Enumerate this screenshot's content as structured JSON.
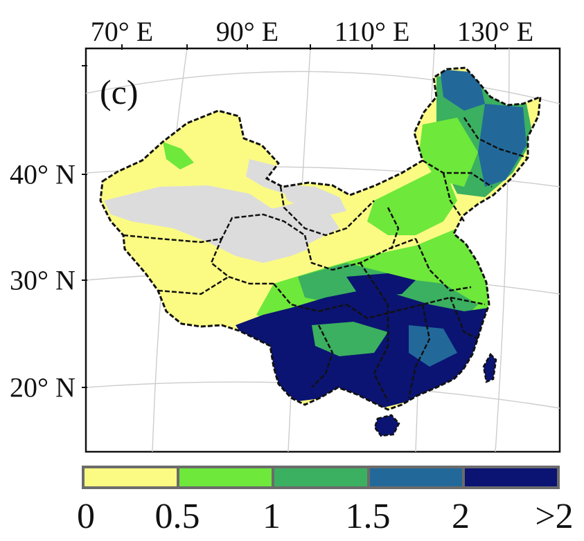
{
  "panel_label": "(c)",
  "longitude_labels": [
    "70° E",
    "90° E",
    "110° E",
    "130° E"
  ],
  "latitude_labels": [
    "40° N",
    "30° N",
    "20° N"
  ],
  "legend": {
    "colors": [
      "#fbfb84",
      "#6ee83a",
      "#3bb060",
      "#22699a",
      "#0b1472"
    ],
    "tick_labels": [
      "0",
      "0.5",
      "1",
      "1.5",
      "2",
      ">2"
    ]
  },
  "map_colors": {
    "no_data": "#dcdcdc",
    "border": "#111111",
    "graticule": "#cccccc"
  }
}
